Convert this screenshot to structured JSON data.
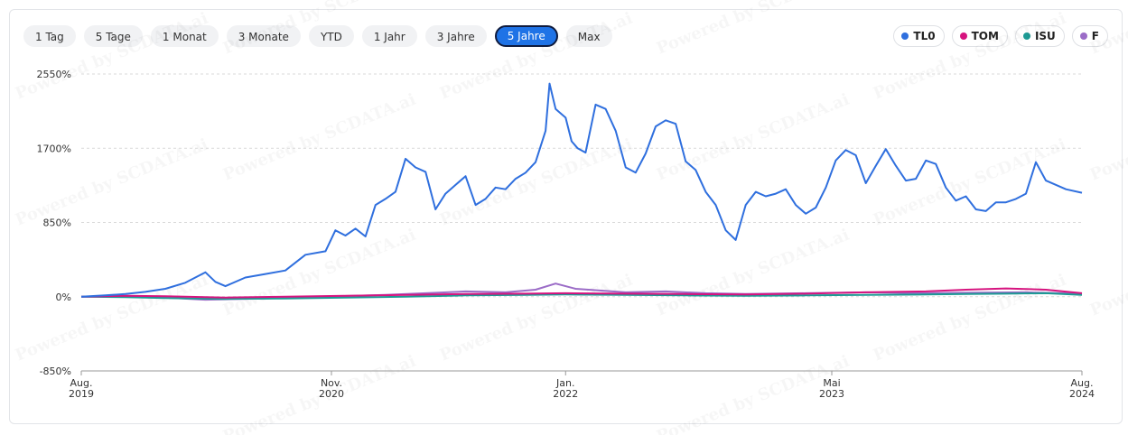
{
  "ranges": [
    {
      "label": "1 Tag"
    },
    {
      "label": "5 Tage"
    },
    {
      "label": "1 Monat"
    },
    {
      "label": "3 Monate"
    },
    {
      "label": "YTD"
    },
    {
      "label": "1 Jahr"
    },
    {
      "label": "3 Jahre"
    },
    {
      "label": "5 Jahre",
      "active": true
    },
    {
      "label": "Max"
    }
  ],
  "legend": [
    {
      "label": "TL0",
      "color": "#2f6fde"
    },
    {
      "label": "TOM",
      "color": "#d6147f"
    },
    {
      "label": "ISU",
      "color": "#1d9a94"
    },
    {
      "label": "F",
      "color": "#9b6cc7"
    }
  ],
  "chart_data": {
    "type": "line",
    "y_ticks": [
      "2550%",
      "1700%",
      "850%",
      "0%",
      "-850%"
    ],
    "y_tick_values": [
      2550,
      1700,
      850,
      0,
      -850
    ],
    "ylim": [
      -850,
      2550
    ],
    "x_ticks": [
      {
        "month": "Aug.",
        "year": "2019",
        "x": 2019.58
      },
      {
        "month": "Nov.",
        "year": "2020",
        "x": 2020.83
      },
      {
        "month": "Jan.",
        "year": "2022",
        "x": 2022.0
      },
      {
        "month": "Mai",
        "year": "2023",
        "x": 2023.33
      },
      {
        "month": "Aug.",
        "year": "2024",
        "x": 2024.58
      }
    ],
    "xlim": [
      2019.58,
      2024.58
    ],
    "grid": true,
    "legend_position": "top-right",
    "watermark": "Powered by SCDATA.ai",
    "series": [
      {
        "name": "TL0",
        "color": "#2f6fde",
        "points": [
          [
            2019.58,
            0
          ],
          [
            2019.7,
            15
          ],
          [
            2019.8,
            30
          ],
          [
            2019.9,
            55
          ],
          [
            2020.0,
            90
          ],
          [
            2020.1,
            160
          ],
          [
            2020.2,
            280
          ],
          [
            2020.25,
            170
          ],
          [
            2020.3,
            120
          ],
          [
            2020.4,
            220
          ],
          [
            2020.5,
            260
          ],
          [
            2020.6,
            300
          ],
          [
            2020.7,
            480
          ],
          [
            2020.8,
            520
          ],
          [
            2020.85,
            760
          ],
          [
            2020.9,
            700
          ],
          [
            2020.95,
            780
          ],
          [
            2021.0,
            690
          ],
          [
            2021.05,
            1050
          ],
          [
            2021.1,
            1120
          ],
          [
            2021.15,
            1200
          ],
          [
            2021.2,
            1580
          ],
          [
            2021.25,
            1480
          ],
          [
            2021.3,
            1430
          ],
          [
            2021.35,
            1000
          ],
          [
            2021.4,
            1180
          ],
          [
            2021.45,
            1280
          ],
          [
            2021.5,
            1380
          ],
          [
            2021.55,
            1050
          ],
          [
            2021.6,
            1120
          ],
          [
            2021.65,
            1250
          ],
          [
            2021.7,
            1230
          ],
          [
            2021.75,
            1350
          ],
          [
            2021.8,
            1420
          ],
          [
            2021.85,
            1540
          ],
          [
            2021.9,
            1900
          ],
          [
            2021.92,
            2440
          ],
          [
            2021.95,
            2150
          ],
          [
            2022.0,
            2050
          ],
          [
            2022.03,
            1780
          ],
          [
            2022.06,
            1700
          ],
          [
            2022.1,
            1650
          ],
          [
            2022.15,
            2200
          ],
          [
            2022.2,
            2150
          ],
          [
            2022.25,
            1900
          ],
          [
            2022.3,
            1480
          ],
          [
            2022.35,
            1420
          ],
          [
            2022.4,
            1640
          ],
          [
            2022.45,
            1950
          ],
          [
            2022.5,
            2020
          ],
          [
            2022.55,
            1980
          ],
          [
            2022.6,
            1550
          ],
          [
            2022.65,
            1450
          ],
          [
            2022.7,
            1200
          ],
          [
            2022.75,
            1050
          ],
          [
            2022.8,
            760
          ],
          [
            2022.85,
            650
          ],
          [
            2022.9,
            1050
          ],
          [
            2022.95,
            1200
          ],
          [
            2023.0,
            1150
          ],
          [
            2023.05,
            1180
          ],
          [
            2023.1,
            1230
          ],
          [
            2023.15,
            1050
          ],
          [
            2023.2,
            950
          ],
          [
            2023.25,
            1020
          ],
          [
            2023.3,
            1250
          ],
          [
            2023.35,
            1560
          ],
          [
            2023.4,
            1680
          ],
          [
            2023.45,
            1620
          ],
          [
            2023.5,
            1300
          ],
          [
            2023.55,
            1500
          ],
          [
            2023.6,
            1690
          ],
          [
            2023.65,
            1500
          ],
          [
            2023.7,
            1330
          ],
          [
            2023.75,
            1350
          ],
          [
            2023.8,
            1560
          ],
          [
            2023.85,
            1520
          ],
          [
            2023.9,
            1250
          ],
          [
            2023.95,
            1100
          ],
          [
            2024.0,
            1150
          ],
          [
            2024.05,
            1000
          ],
          [
            2024.1,
            980
          ],
          [
            2024.15,
            1080
          ],
          [
            2024.2,
            1080
          ],
          [
            2024.25,
            1120
          ],
          [
            2024.3,
            1180
          ],
          [
            2024.35,
            1540
          ],
          [
            2024.4,
            1330
          ],
          [
            2024.5,
            1230
          ],
          [
            2024.58,
            1190
          ]
        ]
      },
      {
        "name": "TOM",
        "color": "#d6147f",
        "points": [
          [
            2019.58,
            0
          ],
          [
            2019.8,
            10
          ],
          [
            2020.0,
            5
          ],
          [
            2020.3,
            -10
          ],
          [
            2020.6,
            0
          ],
          [
            2020.9,
            10
          ],
          [
            2021.2,
            20
          ],
          [
            2021.5,
            30
          ],
          [
            2021.8,
            35
          ],
          [
            2022.0,
            40
          ],
          [
            2022.3,
            35
          ],
          [
            2022.6,
            30
          ],
          [
            2022.9,
            25
          ],
          [
            2023.2,
            35
          ],
          [
            2023.5,
            50
          ],
          [
            2023.8,
            60
          ],
          [
            2024.0,
            80
          ],
          [
            2024.2,
            95
          ],
          [
            2024.4,
            80
          ],
          [
            2024.58,
            40
          ]
        ]
      },
      {
        "name": "ISU",
        "color": "#1d9a94",
        "points": [
          [
            2019.58,
            0
          ],
          [
            2019.8,
            -5
          ],
          [
            2020.0,
            -15
          ],
          [
            2020.3,
            -25
          ],
          [
            2020.6,
            -20
          ],
          [
            2020.9,
            -10
          ],
          [
            2021.2,
            0
          ],
          [
            2021.5,
            15
          ],
          [
            2021.8,
            20
          ],
          [
            2022.0,
            25
          ],
          [
            2022.3,
            20
          ],
          [
            2022.6,
            15
          ],
          [
            2022.9,
            10
          ],
          [
            2023.2,
            15
          ],
          [
            2023.5,
            20
          ],
          [
            2023.8,
            25
          ],
          [
            2024.0,
            30
          ],
          [
            2024.2,
            35
          ],
          [
            2024.4,
            40
          ],
          [
            2024.58,
            20
          ]
        ]
      },
      {
        "name": "F",
        "color": "#9b6cc7",
        "points": [
          [
            2019.58,
            0
          ],
          [
            2019.8,
            5
          ],
          [
            2020.0,
            -10
          ],
          [
            2020.2,
            -35
          ],
          [
            2020.5,
            -20
          ],
          [
            2020.8,
            0
          ],
          [
            2021.1,
            20
          ],
          [
            2021.3,
            40
          ],
          [
            2021.5,
            60
          ],
          [
            2021.7,
            50
          ],
          [
            2021.85,
            80
          ],
          [
            2021.95,
            150
          ],
          [
            2022.05,
            90
          ],
          [
            2022.3,
            50
          ],
          [
            2022.5,
            60
          ],
          [
            2022.7,
            40
          ],
          [
            2022.9,
            30
          ],
          [
            2023.2,
            40
          ],
          [
            2023.5,
            50
          ],
          [
            2023.8,
            40
          ],
          [
            2024.0,
            45
          ],
          [
            2024.3,
            50
          ],
          [
            2024.58,
            35
          ]
        ]
      }
    ]
  }
}
